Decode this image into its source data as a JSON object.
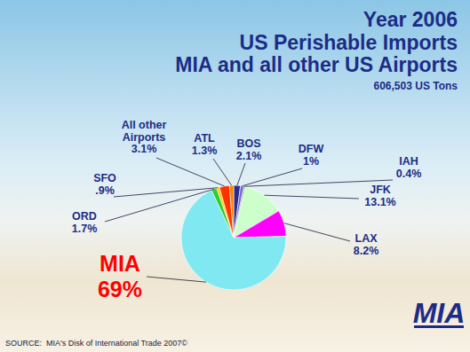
{
  "chart_data": {
    "type": "pie",
    "title": [
      "Year 2006",
      "US Perishable Imports",
      "MIA and all other US Airports"
    ],
    "subtitle": "606,503 US Tons",
    "source": "SOURCE:  MIA's Disk of International Trade 2007©",
    "logo": "MIA",
    "categories": [
      "BOS",
      "DFW",
      "IAH",
      "JFK",
      "LAX",
      "MIA",
      "ORD",
      "SFO",
      "All other Airports",
      "ATL"
    ],
    "values": [
      2.1,
      1,
      0.4,
      13.1,
      8.2,
      69,
      1.7,
      0.9,
      3.1,
      1.3
    ],
    "value_labels": [
      "2.1%",
      "1%",
      "0.4%",
      "13.1%",
      "8.2%",
      "69%",
      "1.7%",
      ".9%",
      "3.1%",
      "1.3%"
    ],
    "colors": [
      "#2b2b8c",
      "#6a6ad0",
      "#993366",
      "#ccffcc",
      "#ff00ff",
      "#7fe8f0",
      "#33cc33",
      "#ffcc00",
      "#ff3300",
      "#ff7f00"
    ],
    "data_labels": true
  }
}
